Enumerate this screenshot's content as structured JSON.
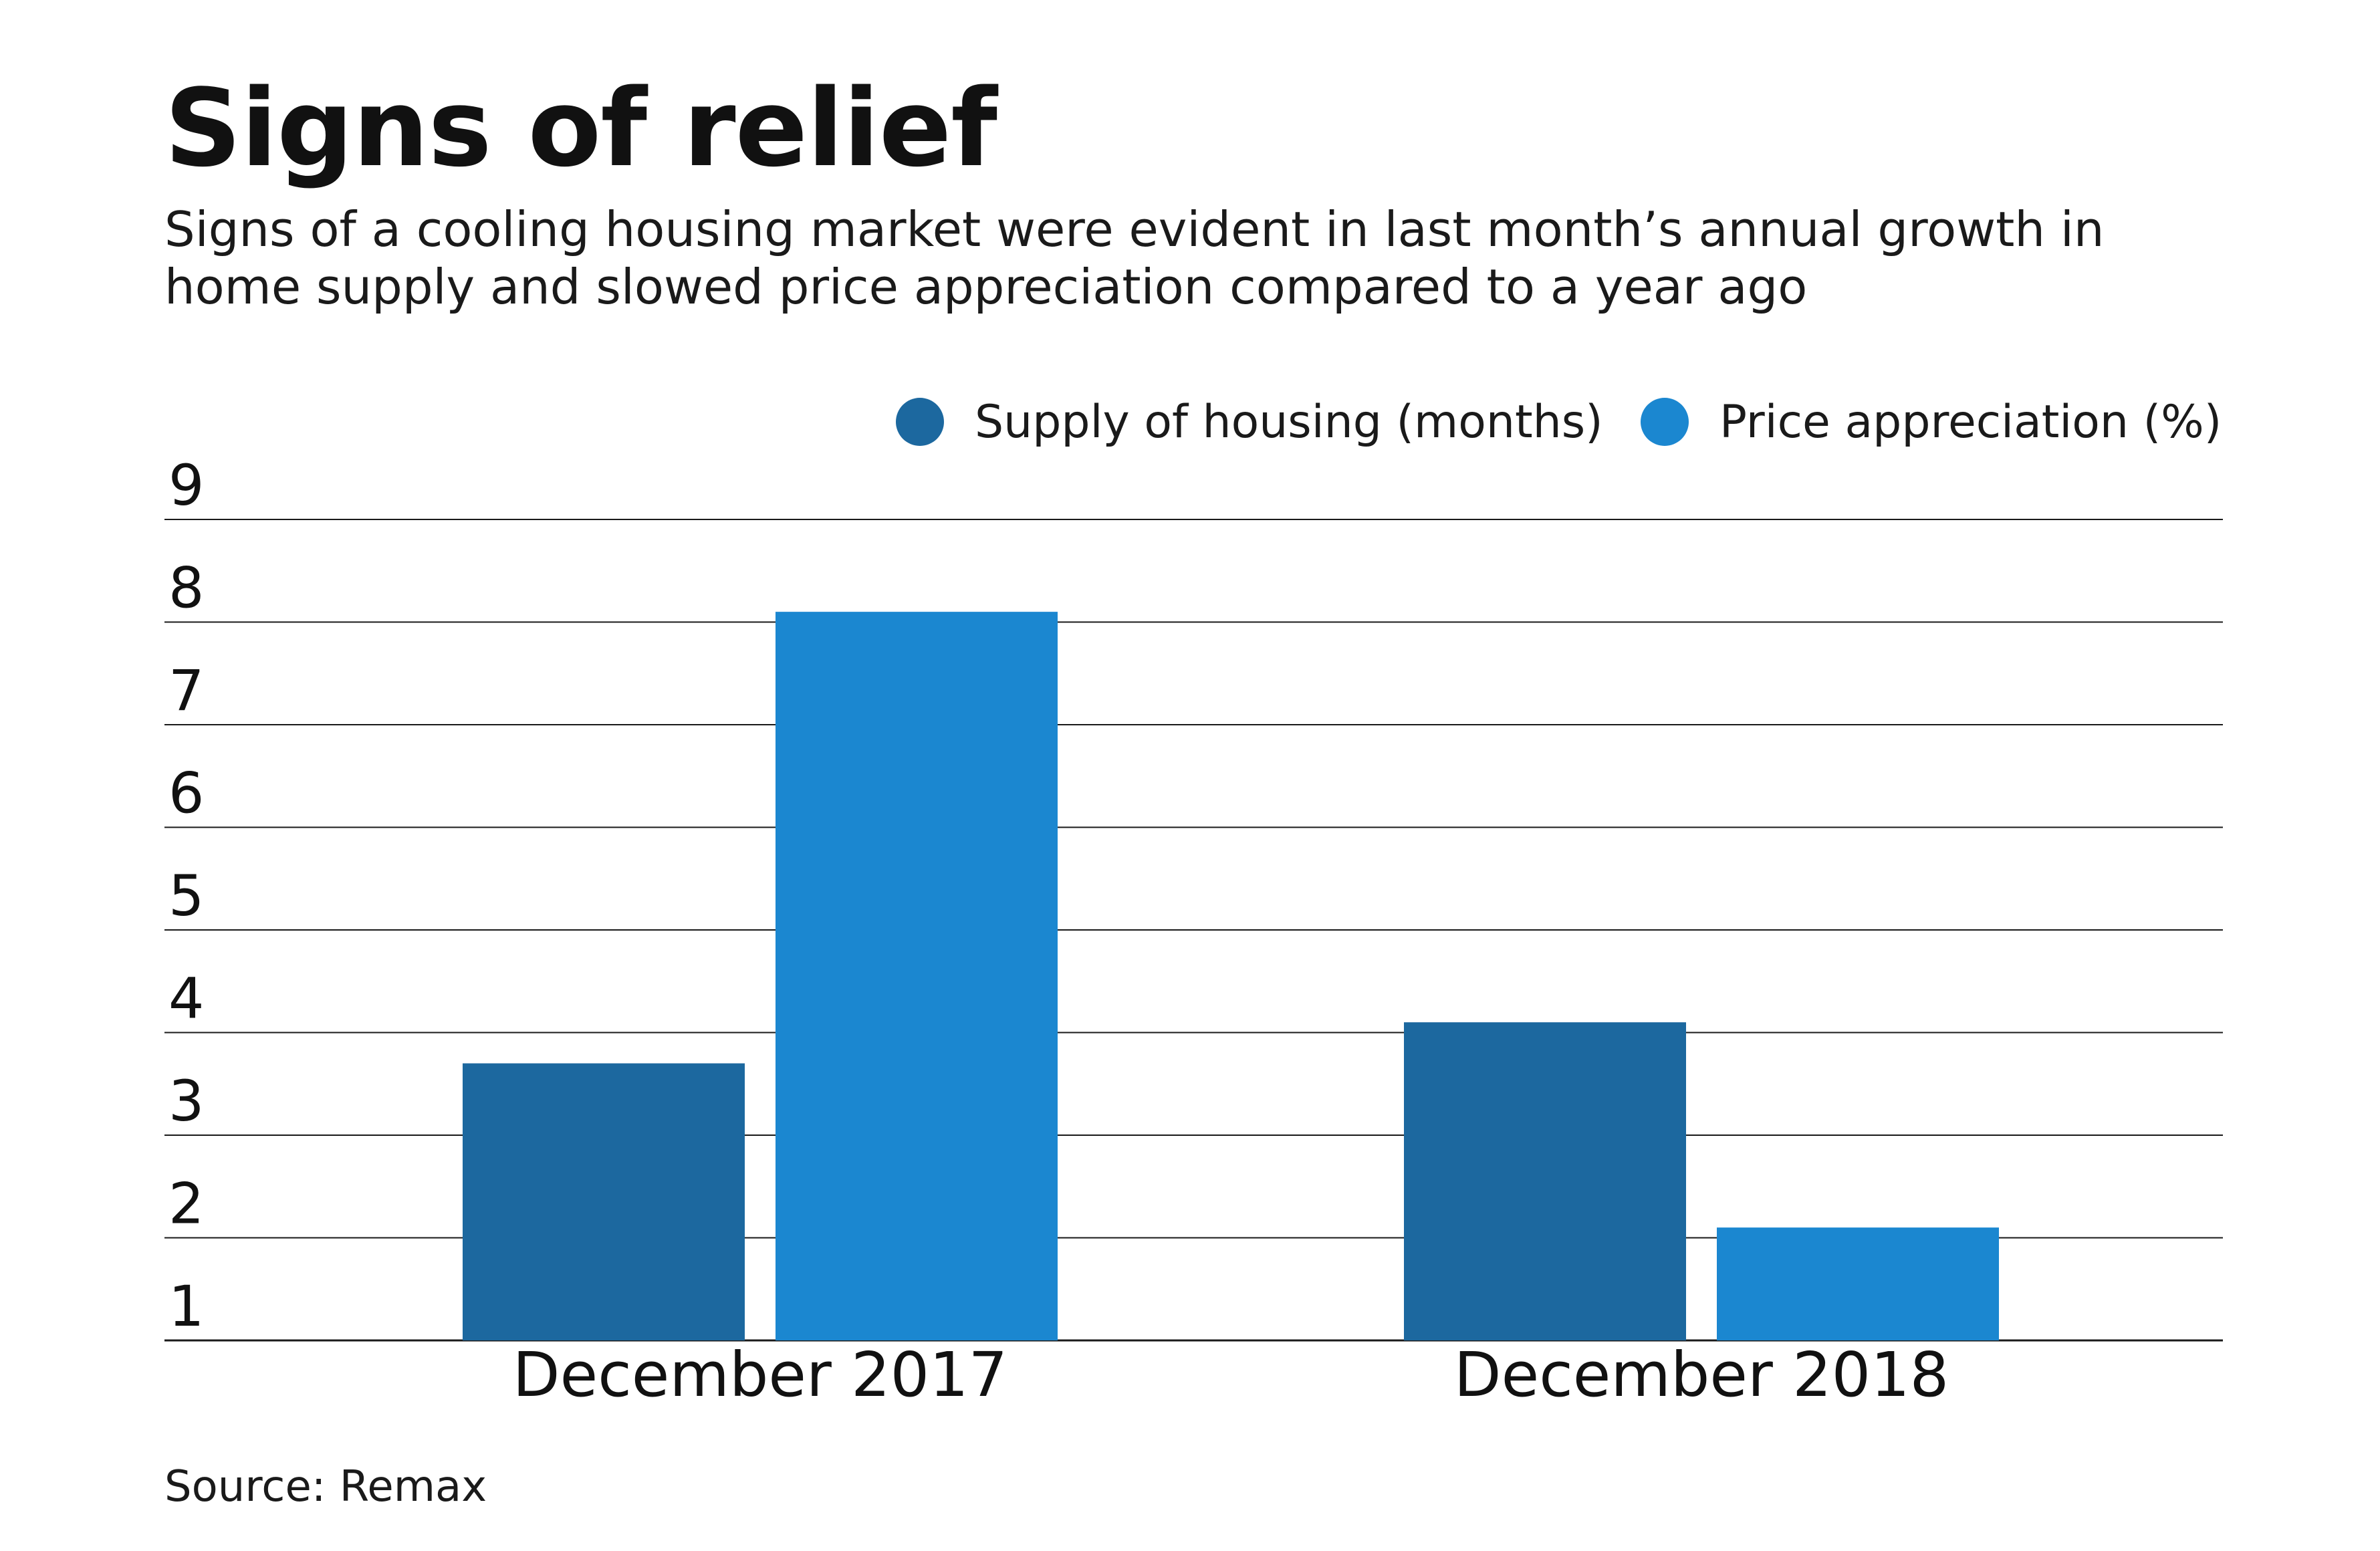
{
  "chart_data": {
    "type": "bar",
    "title": "Signs of relief",
    "subtitle_lines": [
      "Signs of a cooling housing market were evident in last month’s annual growth in",
      "home supply and slowed price appreciation compared to a year ago"
    ],
    "categories": [
      "December 2017",
      "December 2018"
    ],
    "series": [
      {
        "name": "Supply of housing (months)",
        "values": [
          3.7,
          4.1
        ],
        "color": "#1c689f"
      },
      {
        "name": "Price appreciation (%)",
        "values": [
          8.1,
          2.1
        ],
        "color": "#1b87d0"
      }
    ],
    "yticks": [
      "1",
      "2",
      "3",
      "4",
      "5",
      "6",
      "7",
      "8",
      "9"
    ],
    "ylim": [
      1,
      9
    ],
    "xlabel": "",
    "ylabel": "",
    "grid": true,
    "legend": "top-right"
  },
  "source": "Source: Remax"
}
